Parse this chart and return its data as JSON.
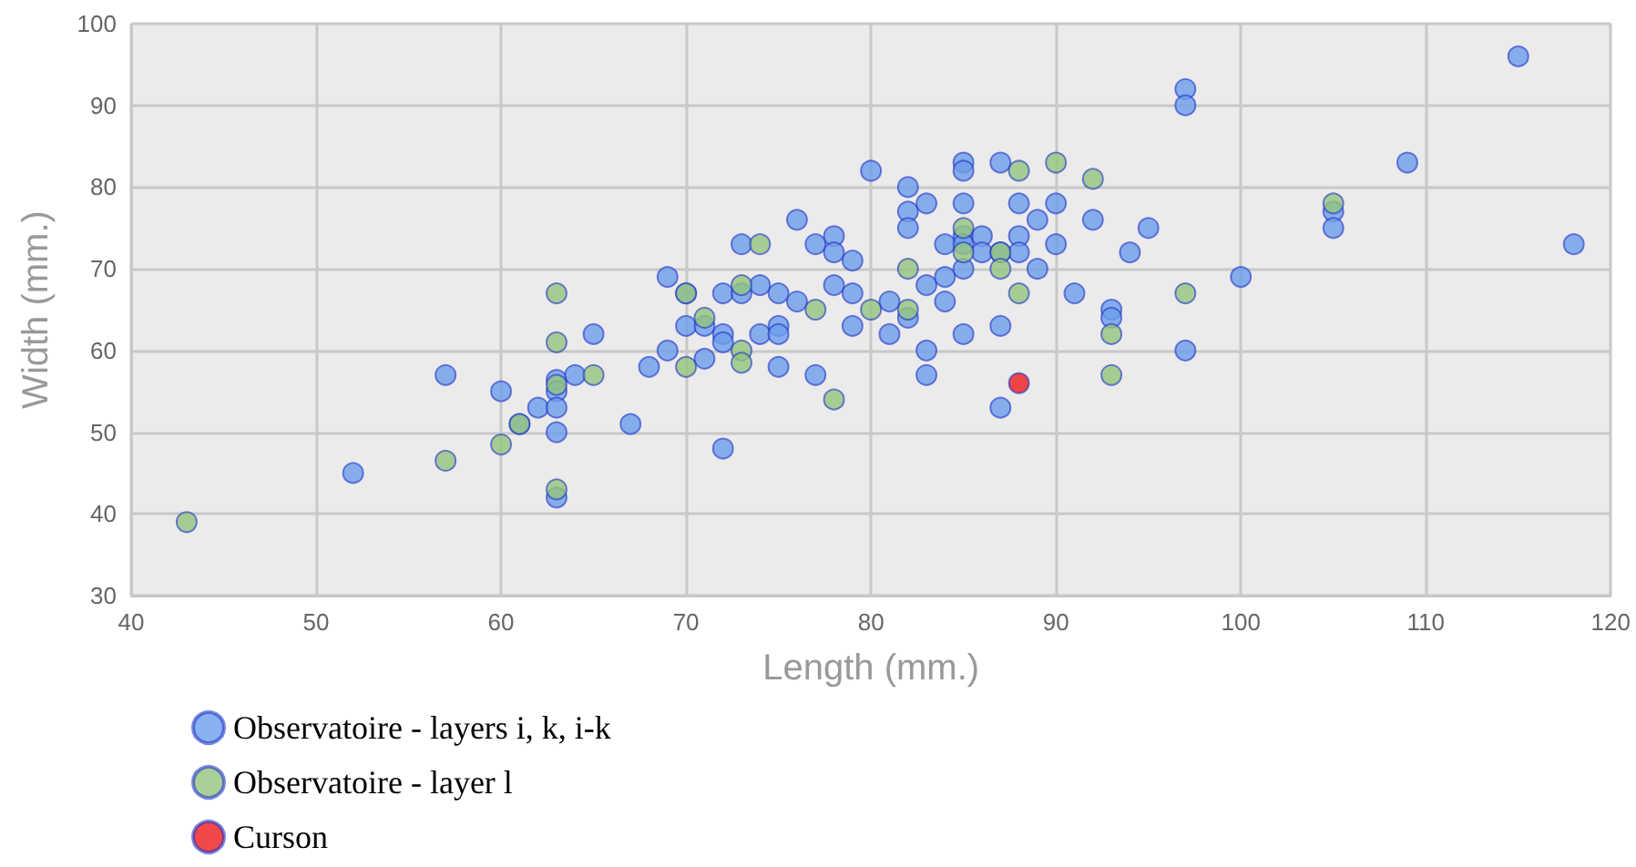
{
  "chart_data": {
    "type": "scatter",
    "xlabel": "Length (mm.)",
    "ylabel": "Width (mm.)",
    "xlim": [
      40,
      120
    ],
    "xticks": [
      40,
      50,
      60,
      70,
      80,
      90,
      100,
      110,
      120
    ],
    "ylim": [
      30,
      100
    ],
    "yticks": [
      30,
      40,
      50,
      60,
      70,
      80,
      90,
      100
    ],
    "grid": true,
    "legend": "bottom left",
    "marker": "circle",
    "series": [
      {
        "name": "Observatoire - layers i, k, i-k",
        "color": "#6d9eeb",
        "x": [
          52,
          57,
          60,
          61,
          62,
          63,
          63,
          63,
          63,
          63,
          64,
          65,
          67,
          68,
          69,
          69,
          70,
          70,
          71,
          71,
          72,
          72,
          72,
          72,
          73,
          73,
          74,
          74,
          75,
          75,
          75,
          75,
          76,
          76,
          77,
          77,
          78,
          78,
          78,
          79,
          79,
          79,
          80,
          81,
          81,
          82,
          82,
          82,
          82,
          83,
          83,
          83,
          83,
          84,
          84,
          84,
          85,
          85,
          85,
          85,
          85,
          85,
          85,
          86,
          86,
          87,
          87,
          87,
          87,
          88,
          88,
          88,
          89,
          89,
          90,
          90,
          91,
          92,
          93,
          93,
          94,
          95,
          97,
          97,
          97,
          100,
          105,
          105,
          109,
          115,
          118
        ],
        "values": [
          45,
          57,
          55,
          51,
          53,
          56.4,
          55,
          53,
          50,
          42,
          57,
          62,
          51,
          58,
          60,
          69,
          63,
          67,
          63,
          59,
          62,
          61,
          67,
          48,
          73,
          67,
          68,
          62,
          63,
          62,
          58,
          67,
          76,
          66,
          73,
          57,
          74,
          72,
          68,
          71,
          67,
          63,
          82,
          66,
          62,
          80,
          77,
          75,
          64,
          78,
          68,
          60,
          57,
          73,
          69,
          66,
          83,
          82,
          78,
          74,
          73,
          70,
          62,
          74,
          72,
          83,
          72,
          63,
          53,
          78,
          74,
          72,
          76,
          70,
          78,
          73,
          67,
          76,
          65,
          64,
          72,
          75,
          92,
          90,
          60,
          69,
          77,
          75,
          83,
          96,
          73
        ]
      },
      {
        "name": "Observatoire - layer l",
        "color": "#93c47d",
        "x": [
          43,
          57,
          60,
          61,
          63,
          63,
          63,
          63,
          65,
          70,
          70,
          71,
          73,
          73,
          73,
          74,
          77,
          78,
          80,
          82,
          82,
          85,
          85,
          87,
          87,
          88,
          88,
          90,
          92,
          93,
          93,
          97,
          105
        ],
        "values": [
          39,
          46.5,
          48.5,
          51,
          67,
          61,
          55.8,
          43,
          57,
          67,
          58,
          64,
          68,
          60,
          58.5,
          73,
          65,
          54,
          65,
          70,
          65,
          75,
          72,
          72,
          70,
          82,
          67,
          83,
          81,
          62,
          57,
          67,
          78
        ]
      },
      {
        "name": "Curson",
        "color": "#ee1c1c",
        "x": [
          88
        ],
        "values": [
          56
        ]
      }
    ]
  }
}
